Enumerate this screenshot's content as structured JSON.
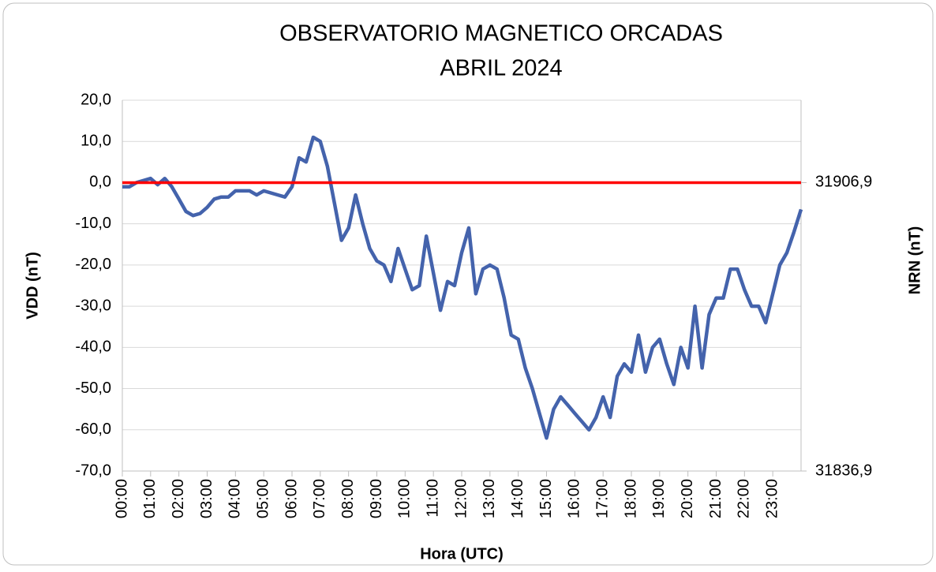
{
  "chart_data": {
    "type": "line",
    "title": "OBSERVATORIO MAGNETICO ORCADAS",
    "subtitle": "ABRIL 2024",
    "x_label": "Hora (UTC)",
    "y_label": "VDD (nT)",
    "y2_label": "NRN (nT)",
    "x": [
      "00:00",
      "00:15",
      "00:30",
      "00:45",
      "01:00",
      "01:15",
      "01:30",
      "01:45",
      "02:00",
      "02:15",
      "02:30",
      "02:45",
      "03:00",
      "03:15",
      "03:30",
      "03:45",
      "04:00",
      "04:15",
      "04:30",
      "04:45",
      "05:00",
      "05:15",
      "05:30",
      "05:45",
      "06:00",
      "06:15",
      "06:30",
      "06:45",
      "07:00",
      "07:15",
      "07:30",
      "07:45",
      "08:00",
      "08:15",
      "08:30",
      "08:45",
      "09:00",
      "09:15",
      "09:30",
      "09:45",
      "10:00",
      "10:15",
      "10:30",
      "10:45",
      "11:00",
      "11:15",
      "11:30",
      "11:45",
      "12:00",
      "12:15",
      "12:30",
      "12:45",
      "13:00",
      "13:15",
      "13:30",
      "13:45",
      "14:00",
      "14:15",
      "14:30",
      "14:45",
      "15:00",
      "15:15",
      "15:30",
      "15:45",
      "16:00",
      "16:15",
      "16:30",
      "16:45",
      "17:00",
      "17:15",
      "17:30",
      "17:45",
      "18:00",
      "18:15",
      "18:30",
      "18:45",
      "19:00",
      "19:15",
      "19:30",
      "19:45",
      "20:00",
      "20:15",
      "20:30",
      "20:45",
      "21:00",
      "21:15",
      "21:30",
      "21:45",
      "22:00",
      "22:15",
      "22:30",
      "22:45",
      "23:00",
      "23:15",
      "23:30",
      "23:45",
      "24:00"
    ],
    "series": [
      {
        "name": "VDD",
        "color": "#4463ac",
        "values": [
          -1,
          -1,
          0,
          0.5,
          1,
          -0.5,
          1,
          -1,
          -4,
          -7,
          -8,
          -7.5,
          -6,
          -4,
          -3.5,
          -3.5,
          -2,
          -2,
          -2,
          -3,
          -2,
          -2.5,
          -3,
          -3.5,
          -1,
          6,
          5,
          11,
          10,
          4,
          -5,
          -14,
          -11,
          -3,
          -10,
          -16,
          -19,
          -20,
          -24,
          -16,
          -21,
          -26,
          -25,
          -13,
          -22,
          -31,
          -24,
          -25,
          -17,
          -11,
          -27,
          -21,
          -20,
          -21,
          -28,
          -37,
          -38,
          -45,
          -50,
          -56,
          -62,
          -55,
          -52,
          -54,
          -56,
          -58,
          -60,
          -57,
          -52,
          -57,
          -47,
          -44,
          -46,
          -37,
          -46,
          -40,
          -38,
          -44,
          -49,
          -40,
          -45,
          -30,
          -45,
          -32,
          -28,
          -28,
          -21,
          -21,
          -26,
          -30,
          -30,
          -34,
          -27,
          -20,
          -17,
          -12,
          -6.5
        ]
      }
    ],
    "reference_line": {
      "value": 0,
      "color": "#ff0000"
    },
    "xlim": [
      "00:00",
      "24:00"
    ],
    "xticks": [
      "00:00",
      "01:00",
      "02:00",
      "03:00",
      "04:00",
      "05:00",
      "06:00",
      "07:00",
      "08:00",
      "09:00",
      "10:00",
      "11:00",
      "12:00",
      "13:00",
      "14:00",
      "15:00",
      "16:00",
      "17:00",
      "18:00",
      "19:00",
      "20:00",
      "21:00",
      "22:00",
      "23:00"
    ],
    "ylim": [
      -70,
      20
    ],
    "yticks": [
      {
        "value": 20,
        "label": "20,0"
      },
      {
        "value": 10,
        "label": "10,0"
      },
      {
        "value": 0,
        "label": "0,0"
      },
      {
        "value": -10,
        "label": "-10,0"
      },
      {
        "value": -20,
        "label": "-20,0"
      },
      {
        "value": -30,
        "label": "-30,0"
      },
      {
        "value": -40,
        "label": "-40,0"
      },
      {
        "value": -50,
        "label": "-50,0"
      },
      {
        "value": -60,
        "label": "-60,0"
      },
      {
        "value": -70,
        "label": "-70,0"
      }
    ],
    "y2lim": [
      31836.9,
      31926.9
    ],
    "y2ticks": [
      {
        "value": 31906.9,
        "label": "31906,9"
      },
      {
        "value": 31836.9,
        "label": "31836,9"
      }
    ],
    "grid": true
  }
}
